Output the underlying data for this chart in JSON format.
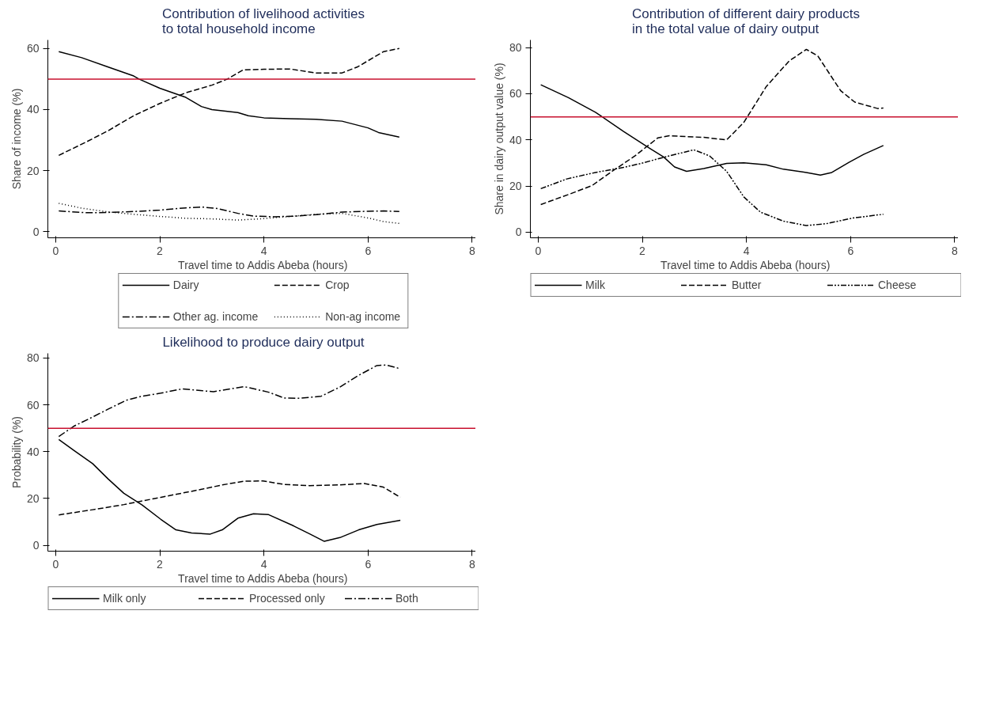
{
  "chart_data": [
    {
      "type": "line",
      "title": "Contribution of livelihood activities\nto total household income",
      "xlabel": "Travel time to Addis Abeba (hours)",
      "ylabel": "Share of income (%)",
      "xlim": [
        -0.15,
        8.13
      ],
      "ylim": [
        -2,
        62.8
      ],
      "xticks": [
        0,
        2,
        4,
        6,
        8
      ],
      "yticks": [
        0,
        20,
        40,
        60
      ],
      "grid": false,
      "legend": "bottom",
      "ref_lines": [
        {
          "axis": "y",
          "value": 50,
          "color": "#c8102e"
        }
      ],
      "series": [
        {
          "name": "Dairy",
          "color": "#000000",
          "line_style": "solid",
          "x": [
            0.06,
            0.5,
            1,
            1.5,
            1.6,
            2,
            2.5,
            2.8,
            3,
            3.5,
            3.7,
            4,
            4.5,
            5,
            5.5,
            6,
            6.2,
            6.6
          ],
          "values": [
            59,
            57,
            54,
            51,
            50,
            47,
            44,
            41,
            40,
            39,
            38,
            37.3,
            37,
            36.8,
            36.2,
            34,
            32.5,
            31
          ]
        },
        {
          "name": "Crop",
          "color": "#000000",
          "line_style": "dashed",
          "x": [
            0.06,
            0.6,
            1,
            1.5,
            2,
            2.5,
            3,
            3.3,
            3.6,
            4,
            4.5,
            5,
            5.5,
            5.8,
            6.1,
            6.3,
            6.6
          ],
          "values": [
            25,
            29.5,
            33,
            38,
            42,
            45.5,
            48,
            50,
            53,
            53.2,
            53.3,
            52,
            52,
            54,
            57,
            59,
            60
          ]
        },
        {
          "name": "Other ag. income",
          "color": "#000000",
          "line_style": "dashdot",
          "x": [
            0.06,
            0.6,
            1,
            1.5,
            2,
            2.5,
            2.8,
            3.1,
            3.5,
            3.8,
            4.2,
            4.6,
            5,
            5.5,
            6,
            6.3,
            6.6
          ],
          "values": [
            6.8,
            6.2,
            6.3,
            6.6,
            7.1,
            7.8,
            8.1,
            7.6,
            6,
            5.1,
            4.9,
            5.1,
            5.6,
            6.4,
            6.7,
            6.8,
            6.6
          ]
        },
        {
          "name": "Non-ag income",
          "color": "#000000",
          "line_style": "dotted",
          "x": [
            0.06,
            0.5,
            1,
            1.5,
            2,
            2.5,
            3,
            3.5,
            4,
            4.5,
            5,
            5.5,
            6,
            6.3,
            6.6
          ],
          "values": [
            9.3,
            7.7,
            6.5,
            5.7,
            5,
            4.4,
            4.2,
            3.8,
            4.3,
            5,
            5.7,
            6,
            4.5,
            3.3,
            2.7
          ]
        }
      ]
    },
    {
      "type": "line",
      "title": "Contribution of different dairy products\nin the total value of dairy output",
      "xlabel": "Travel time to Addis Abeba (hours)",
      "ylabel": "Share in dairy output value (%)",
      "xlim": [
        -0.15,
        8.13
      ],
      "ylim": [
        -2.4,
        83.3
      ],
      "xticks": [
        0,
        2,
        4,
        6,
        8
      ],
      "yticks": [
        0,
        20,
        40,
        60,
        80
      ],
      "grid": false,
      "legend": "bottom",
      "ref_lines": [
        {
          "axis": "y",
          "value": 50,
          "color": "#c8102e"
        }
      ],
      "series": [
        {
          "name": "Milk",
          "color": "#000000",
          "line_style": "solid",
          "x": [
            0.05,
            0.58,
            1.1,
            1.64,
            2.14,
            2.41,
            2.62,
            2.85,
            3.18,
            3.62,
            3.95,
            4.38,
            4.71,
            5.15,
            5.42,
            5.64,
            5.97,
            6.25,
            6.63
          ],
          "values": [
            63.9,
            58.3,
            52,
            43.7,
            36.4,
            32.6,
            28.3,
            26.4,
            27.6,
            29.8,
            30.1,
            29.2,
            27.3,
            25.9,
            24.8,
            25.9,
            30.3,
            33.7,
            37.6
          ]
        },
        {
          "name": "Butter",
          "color": "#000000",
          "line_style": "dashed",
          "x": [
            0.05,
            0.66,
            1.04,
            1.42,
            1.86,
            2.3,
            2.52,
            3.18,
            3.62,
            3.95,
            4.38,
            4.82,
            5.15,
            5.37,
            5.81,
            6.08,
            6.52,
            6.63
          ],
          "values": [
            12,
            17,
            20.3,
            26.4,
            33.1,
            40.9,
            41.8,
            41.1,
            40,
            47.6,
            63.1,
            74.2,
            79.2,
            76.4,
            61.3,
            56.4,
            53.6,
            53.8
          ]
        },
        {
          "name": "Cheese",
          "color": "#000000",
          "line_style": "dashdotdot",
          "x": [
            0.05,
            0.55,
            1.1,
            1.64,
            1.97,
            2.52,
            2.99,
            3.29,
            3.62,
            3.95,
            4.27,
            4.71,
            5.15,
            5.53,
            6.03,
            6.63
          ],
          "values": [
            18.9,
            23.1,
            25.9,
            28.1,
            29.8,
            33.1,
            35.7,
            33.1,
            26.4,
            15.3,
            8.7,
            4.8,
            2.9,
            3.7,
            6.1,
            7.8
          ]
        }
      ]
    },
    {
      "type": "line",
      "title": "Likelihood to produce dairy output",
      "xlabel": "Travel time to Addis Abeba (hours)",
      "ylabel": "Probability (%)",
      "xlim": [
        -0.15,
        8.13
      ],
      "ylim": [
        -2.5,
        82
      ],
      "xticks": [
        0,
        2,
        4,
        6,
        8
      ],
      "yticks": [
        0,
        20,
        40,
        60,
        80
      ],
      "grid": false,
      "legend": "bottom",
      "ref_lines": [
        {
          "axis": "y",
          "value": 50,
          "color": "#c8102e"
        }
      ],
      "series": [
        {
          "name": "Milk only",
          "color": "#000000",
          "line_style": "solid",
          "x": [
            0.06,
            0.36,
            0.71,
            1.01,
            1.31,
            1.66,
            2.02,
            2.31,
            2.61,
            2.97,
            3.2,
            3.5,
            3.8,
            4.09,
            4.57,
            4.87,
            5.16,
            5.46,
            5.82,
            6.17,
            6.62
          ],
          "values": [
            45.2,
            40.4,
            34.9,
            28.3,
            22.2,
            17.2,
            11.1,
            6.6,
            5.3,
            4.8,
            6.6,
            11.6,
            13.5,
            13.1,
            8.3,
            5,
            1.7,
            3.3,
            6.6,
            8.9,
            10.7
          ]
        },
        {
          "name": "Processed only",
          "color": "#000000",
          "line_style": "dashed",
          "x": [
            0.06,
            0.71,
            1.31,
            2.02,
            2.73,
            3.2,
            3.62,
            3.98,
            4.39,
            4.87,
            5.46,
            5.93,
            6.29,
            6.62
          ],
          "values": [
            13,
            15.2,
            17.4,
            20.5,
            23.6,
            25.8,
            27.4,
            27.5,
            26,
            25.5,
            25.8,
            26.4,
            24.9,
            20.5
          ]
        },
        {
          "name": "Both",
          "color": "#000000",
          "line_style": "dashdot",
          "x": [
            0.06,
            0.36,
            0.71,
            1.01,
            1.36,
            1.66,
            2.02,
            2.43,
            3.03,
            3.62,
            4.09,
            4.39,
            4.69,
            5.1,
            5.46,
            5.82,
            6.17,
            6.35,
            6.62
          ],
          "values": [
            46.5,
            51,
            54.8,
            58.2,
            62,
            63.7,
            65,
            66.8,
            65.6,
            67.8,
            65.4,
            62.9,
            62.8,
            63.7,
            67.6,
            72.6,
            76.8,
            77,
            75.4
          ]
        }
      ]
    }
  ]
}
